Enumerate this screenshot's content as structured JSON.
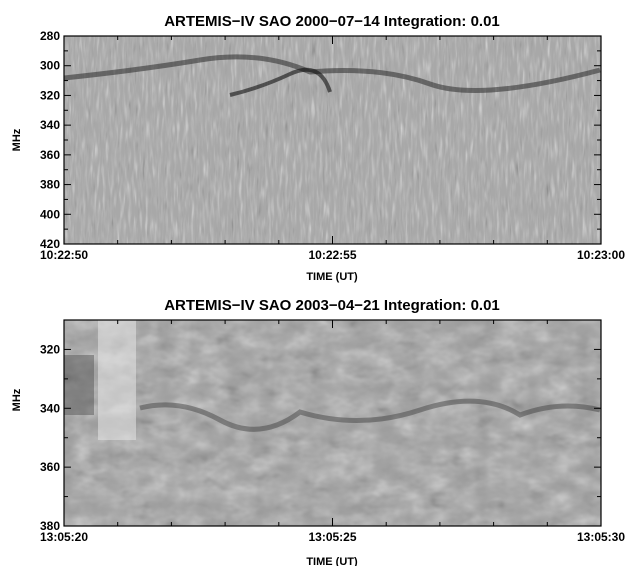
{
  "chart_data": [
    {
      "type": "heatmap",
      "title": "ARTEMIS−IV  SAO 2000−07−14   Integration: 0.01",
      "xlabel": "TIME (UT)",
      "ylabel": "MHz",
      "x_ticks": [
        "10:22:50",
        "10:22:55",
        "10:23:00"
      ],
      "x_range": [
        "10:22:50",
        "10:23:00"
      ],
      "y_ticks": [
        280,
        300,
        320,
        340,
        360,
        380,
        400,
        420
      ],
      "ylim": [
        420,
        280
      ],
      "y_inverted": true,
      "colormap": "grayscale"
    },
    {
      "type": "heatmap",
      "title": "ARTEMIS−IV  SAO 2003−04−21   Integration: 0.01",
      "xlabel": "TIME (UT)",
      "ylabel": "MHz",
      "x_ticks": [
        "13:05:20",
        "13:05:25",
        "13:05:30"
      ],
      "x_range": [
        "13:05:20",
        "13:05:30"
      ],
      "y_ticks": [
        320,
        340,
        360,
        380
      ],
      "ylim": [
        380,
        310
      ],
      "y_inverted": true,
      "colormap": "grayscale"
    }
  ]
}
